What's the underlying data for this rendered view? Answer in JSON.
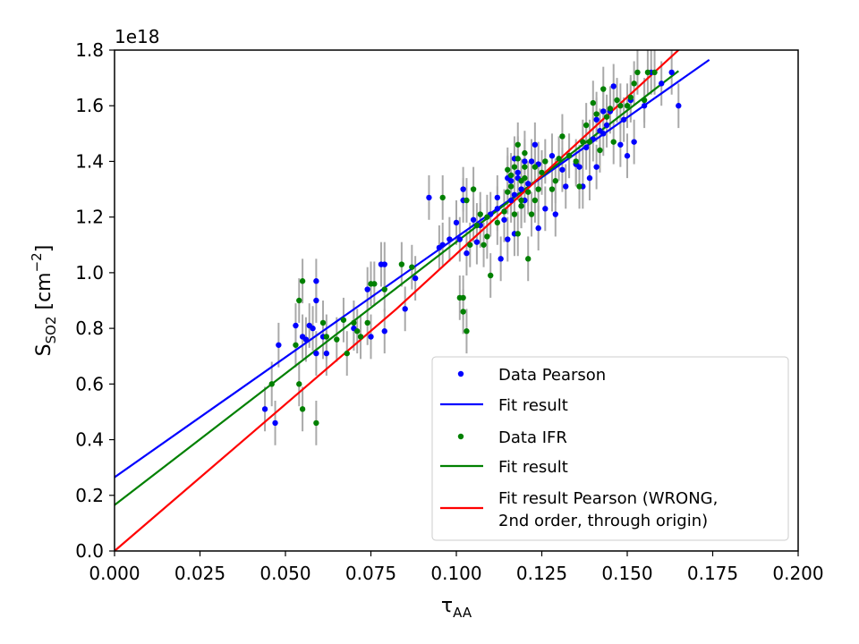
{
  "chart_data": {
    "type": "scatter",
    "title": "",
    "scale_label": "1e18",
    "xlabel": {
      "main": "τ",
      "sub": "AA"
    },
    "ylabel": {
      "main": "S",
      "sub": "SO2",
      "unit_pre": " [cm",
      "unit_sup": "−2",
      "unit_post": "]"
    },
    "xlim": [
      0.0,
      0.2
    ],
    "ylim": [
      0.0,
      1.8
    ],
    "y_scale_factor": 1e+18,
    "xticks": [
      "0.000",
      "0.025",
      "0.050",
      "0.075",
      "0.100",
      "0.125",
      "0.150",
      "0.175",
      "0.200"
    ],
    "yticks": [
      "0.0",
      "0.2",
      "0.4",
      "0.6",
      "0.8",
      "1.0",
      "1.2",
      "1.4",
      "1.6",
      "1.8"
    ],
    "grid": false,
    "legend_position": "bottom-right",
    "error_bar_color": "#a9a9a9",
    "legend": [
      {
        "label": "Data Pearson",
        "kind": "marker",
        "color": "#0000ff"
      },
      {
        "label": "Fit result",
        "kind": "line",
        "color": "#0000ff"
      },
      {
        "label": "Data IFR",
        "kind": "marker",
        "color": "#008000"
      },
      {
        "label": "Fit result",
        "kind": "line",
        "color": "#008000"
      },
      {
        "label": "Fit result Pearson (WRONG,\n2nd order, through origin)",
        "kind": "line",
        "color": "#ff0000"
      }
    ],
    "series": [
      {
        "name": "Data Pearson",
        "type": "scatter",
        "color": "#0000ff",
        "yerr": 0.08,
        "points": [
          [
            0.044,
            0.51
          ],
          [
            0.047,
            0.46
          ],
          [
            0.048,
            0.74
          ],
          [
            0.053,
            0.81
          ],
          [
            0.055,
            0.77
          ],
          [
            0.056,
            0.76
          ],
          [
            0.057,
            0.81
          ],
          [
            0.058,
            0.8
          ],
          [
            0.059,
            0.9
          ],
          [
            0.059,
            0.97
          ],
          [
            0.059,
            0.71
          ],
          [
            0.061,
            0.77
          ],
          [
            0.062,
            0.71
          ],
          [
            0.07,
            0.8
          ],
          [
            0.074,
            0.94
          ],
          [
            0.075,
            0.77
          ],
          [
            0.078,
            1.03
          ],
          [
            0.079,
            1.03
          ],
          [
            0.079,
            0.79
          ],
          [
            0.085,
            0.87
          ],
          [
            0.088,
            0.98
          ],
          [
            0.092,
            1.27
          ],
          [
            0.095,
            1.09
          ],
          [
            0.096,
            1.1
          ],
          [
            0.098,
            1.12
          ],
          [
            0.1,
            1.18
          ],
          [
            0.101,
            1.12
          ],
          [
            0.102,
            1.3
          ],
          [
            0.102,
            1.26
          ],
          [
            0.103,
            1.07
          ],
          [
            0.105,
            1.19
          ],
          [
            0.106,
            1.11
          ],
          [
            0.107,
            1.17
          ],
          [
            0.11,
            1.21
          ],
          [
            0.112,
            1.23
          ],
          [
            0.112,
            1.27
          ],
          [
            0.113,
            1.05
          ],
          [
            0.114,
            1.19
          ],
          [
            0.115,
            1.34
          ],
          [
            0.115,
            1.12
          ],
          [
            0.116,
            1.33
          ],
          [
            0.116,
            1.26
          ],
          [
            0.117,
            1.41
          ],
          [
            0.117,
            1.28
          ],
          [
            0.117,
            1.14
          ],
          [
            0.118,
            1.34
          ],
          [
            0.118,
            1.36
          ],
          [
            0.119,
            1.3
          ],
          [
            0.119,
            1.24
          ],
          [
            0.12,
            1.4
          ],
          [
            0.12,
            1.26
          ],
          [
            0.121,
            1.32
          ],
          [
            0.122,
            1.4
          ],
          [
            0.123,
            1.46
          ],
          [
            0.124,
            1.39
          ],
          [
            0.124,
            1.16
          ],
          [
            0.126,
            1.23
          ],
          [
            0.128,
            1.42
          ],
          [
            0.129,
            1.21
          ],
          [
            0.131,
            1.37
          ],
          [
            0.132,
            1.31
          ],
          [
            0.133,
            1.42
          ],
          [
            0.135,
            1.39
          ],
          [
            0.136,
            1.38
          ],
          [
            0.137,
            1.31
          ],
          [
            0.138,
            1.45
          ],
          [
            0.139,
            1.34
          ],
          [
            0.14,
            1.48
          ],
          [
            0.141,
            1.38
          ],
          [
            0.141,
            1.55
          ],
          [
            0.142,
            1.51
          ],
          [
            0.143,
            1.58
          ],
          [
            0.143,
            1.5
          ],
          [
            0.144,
            1.53
          ],
          [
            0.145,
            1.58
          ],
          [
            0.146,
            1.67
          ],
          [
            0.148,
            1.46
          ],
          [
            0.149,
            1.55
          ],
          [
            0.15,
            1.42
          ],
          [
            0.151,
            1.62
          ],
          [
            0.152,
            1.47
          ],
          [
            0.155,
            1.6
          ],
          [
            0.157,
            1.72
          ],
          [
            0.16,
            1.68
          ],
          [
            0.163,
            1.72
          ],
          [
            0.165,
            1.6
          ]
        ]
      },
      {
        "name": "Fit result",
        "type": "line",
        "color": "#0000ff",
        "points": [
          [
            0.0,
            0.265
          ],
          [
            0.174,
            1.765
          ]
        ]
      },
      {
        "name": "Data IFR",
        "type": "scatter",
        "color": "#008000",
        "yerr": 0.08,
        "points": [
          [
            0.046,
            0.6
          ],
          [
            0.053,
            0.74
          ],
          [
            0.054,
            0.9
          ],
          [
            0.054,
            0.6
          ],
          [
            0.055,
            0.51
          ],
          [
            0.055,
            0.97
          ],
          [
            0.059,
            0.46
          ],
          [
            0.061,
            0.82
          ],
          [
            0.062,
            0.77
          ],
          [
            0.065,
            0.76
          ],
          [
            0.067,
            0.83
          ],
          [
            0.068,
            0.71
          ],
          [
            0.07,
            0.82
          ],
          [
            0.071,
            0.79
          ],
          [
            0.072,
            0.77
          ],
          [
            0.074,
            0.82
          ],
          [
            0.075,
            0.96
          ],
          [
            0.076,
            0.96
          ],
          [
            0.079,
            0.94
          ],
          [
            0.084,
            1.03
          ],
          [
            0.087,
            1.02
          ],
          [
            0.096,
            1.27
          ],
          [
            0.101,
            0.91
          ],
          [
            0.102,
            0.91
          ],
          [
            0.102,
            0.86
          ],
          [
            0.103,
            0.79
          ],
          [
            0.103,
            1.26
          ],
          [
            0.104,
            1.1
          ],
          [
            0.105,
            1.3
          ],
          [
            0.106,
            1.17
          ],
          [
            0.107,
            1.21
          ],
          [
            0.108,
            1.1
          ],
          [
            0.109,
            1.2
          ],
          [
            0.109,
            1.13
          ],
          [
            0.11,
            0.99
          ],
          [
            0.112,
            1.18
          ],
          [
            0.114,
            1.22
          ],
          [
            0.115,
            1.37
          ],
          [
            0.115,
            1.29
          ],
          [
            0.116,
            1.31
          ],
          [
            0.116,
            1.35
          ],
          [
            0.117,
            1.38
          ],
          [
            0.117,
            1.21
          ],
          [
            0.118,
            1.41
          ],
          [
            0.118,
            1.46
          ],
          [
            0.118,
            1.14
          ],
          [
            0.119,
            1.33
          ],
          [
            0.119,
            1.26
          ],
          [
            0.119,
            1.24
          ],
          [
            0.12,
            1.34
          ],
          [
            0.12,
            1.38
          ],
          [
            0.12,
            1.43
          ],
          [
            0.121,
            1.05
          ],
          [
            0.121,
            1.29
          ],
          [
            0.122,
            1.21
          ],
          [
            0.123,
            1.26
          ],
          [
            0.123,
            1.38
          ],
          [
            0.124,
            1.3
          ],
          [
            0.125,
            1.36
          ],
          [
            0.126,
            1.4
          ],
          [
            0.128,
            1.3
          ],
          [
            0.129,
            1.33
          ],
          [
            0.13,
            1.41
          ],
          [
            0.131,
            1.49
          ],
          [
            0.133,
            1.42
          ],
          [
            0.135,
            1.4
          ],
          [
            0.136,
            1.31
          ],
          [
            0.137,
            1.47
          ],
          [
            0.138,
            1.53
          ],
          [
            0.139,
            1.47
          ],
          [
            0.14,
            1.61
          ],
          [
            0.141,
            1.57
          ],
          [
            0.142,
            1.44
          ],
          [
            0.143,
            1.66
          ],
          [
            0.144,
            1.56
          ],
          [
            0.145,
            1.59
          ],
          [
            0.146,
            1.47
          ],
          [
            0.147,
            1.62
          ],
          [
            0.148,
            1.6
          ],
          [
            0.15,
            1.6
          ],
          [
            0.151,
            1.63
          ],
          [
            0.152,
            1.68
          ],
          [
            0.153,
            1.72
          ],
          [
            0.155,
            1.62
          ],
          [
            0.156,
            1.72
          ],
          [
            0.158,
            1.72
          ]
        ]
      },
      {
        "name": "Fit result",
        "type": "line",
        "color": "#008000",
        "points": [
          [
            0.0,
            0.165
          ],
          [
            0.165,
            1.725
          ]
        ]
      },
      {
        "name": "Fit result Pearson (WRONG, 2nd order, through origin)",
        "type": "line",
        "color": "#ff0000",
        "points": [
          [
            0.0,
            0.0
          ],
          [
            0.0825,
            0.87
          ],
          [
            0.165,
            1.8
          ]
        ]
      }
    ]
  }
}
